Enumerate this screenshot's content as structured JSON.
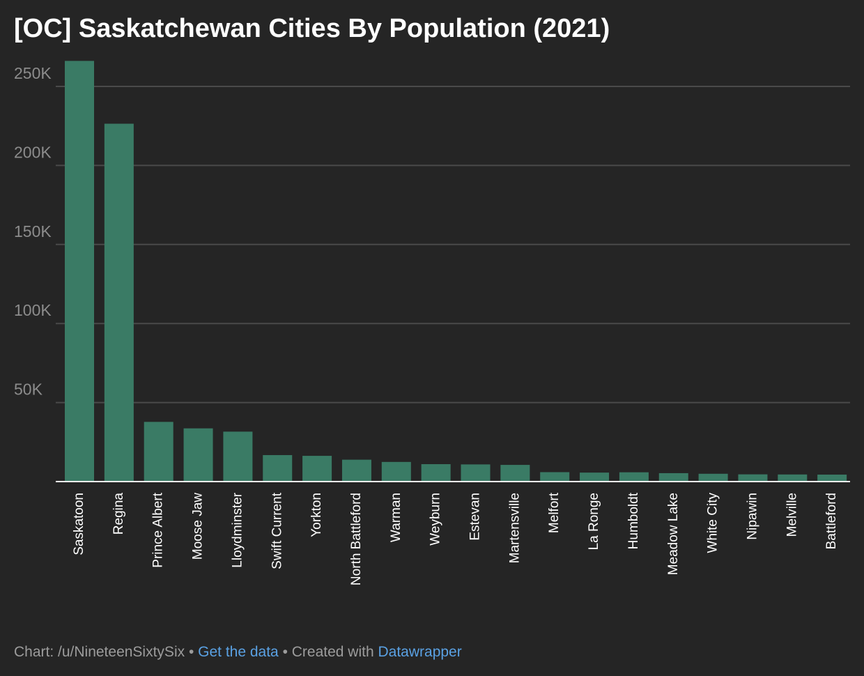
{
  "title": "[OC] Saskatchewan Cities By Population (2021)",
  "colors": {
    "background": "#252525",
    "bar": "#3a7b65",
    "grid": "#4a4a4a",
    "axis": "#ffffff",
    "tick_text": "#8c8c8c",
    "category_text": "#ffffff",
    "link": "#5aa1e3"
  },
  "chart_data": {
    "type": "bar",
    "categories": [
      "Saskatoon",
      "Regina",
      "Prince Albert",
      "Moose Jaw",
      "Lloydminster",
      "Swift Current",
      "Yorkton",
      "North Battleford",
      "Warman",
      "Weyburn",
      "Estevan",
      "Martensville",
      "Melfort",
      "La Ronge",
      "Humboldt",
      "Meadow Lake",
      "White City",
      "Nipawin",
      "Melville",
      "Battleford"
    ],
    "values": [
      266141,
      226404,
      37756,
      33665,
      31582,
      16750,
      16280,
      13836,
      12419,
      11019,
      10851,
      10549,
      5955,
      5671,
      5869,
      5322,
      4937,
      4570,
      4493,
      4400
    ],
    "yticks": [
      50000,
      100000,
      150000,
      200000,
      250000
    ],
    "ytick_labels": [
      "50K",
      "100K",
      "150K",
      "200K",
      "250K"
    ],
    "ylim": [
      0,
      265000
    ],
    "grid": true,
    "xlabel": "",
    "ylabel": ""
  },
  "footer": {
    "credit": "Chart: /u/NineteenSixtySix",
    "separator": " • ",
    "get_data": "Get the data",
    "created_with": "Created with ",
    "tool": "Datawrapper"
  }
}
